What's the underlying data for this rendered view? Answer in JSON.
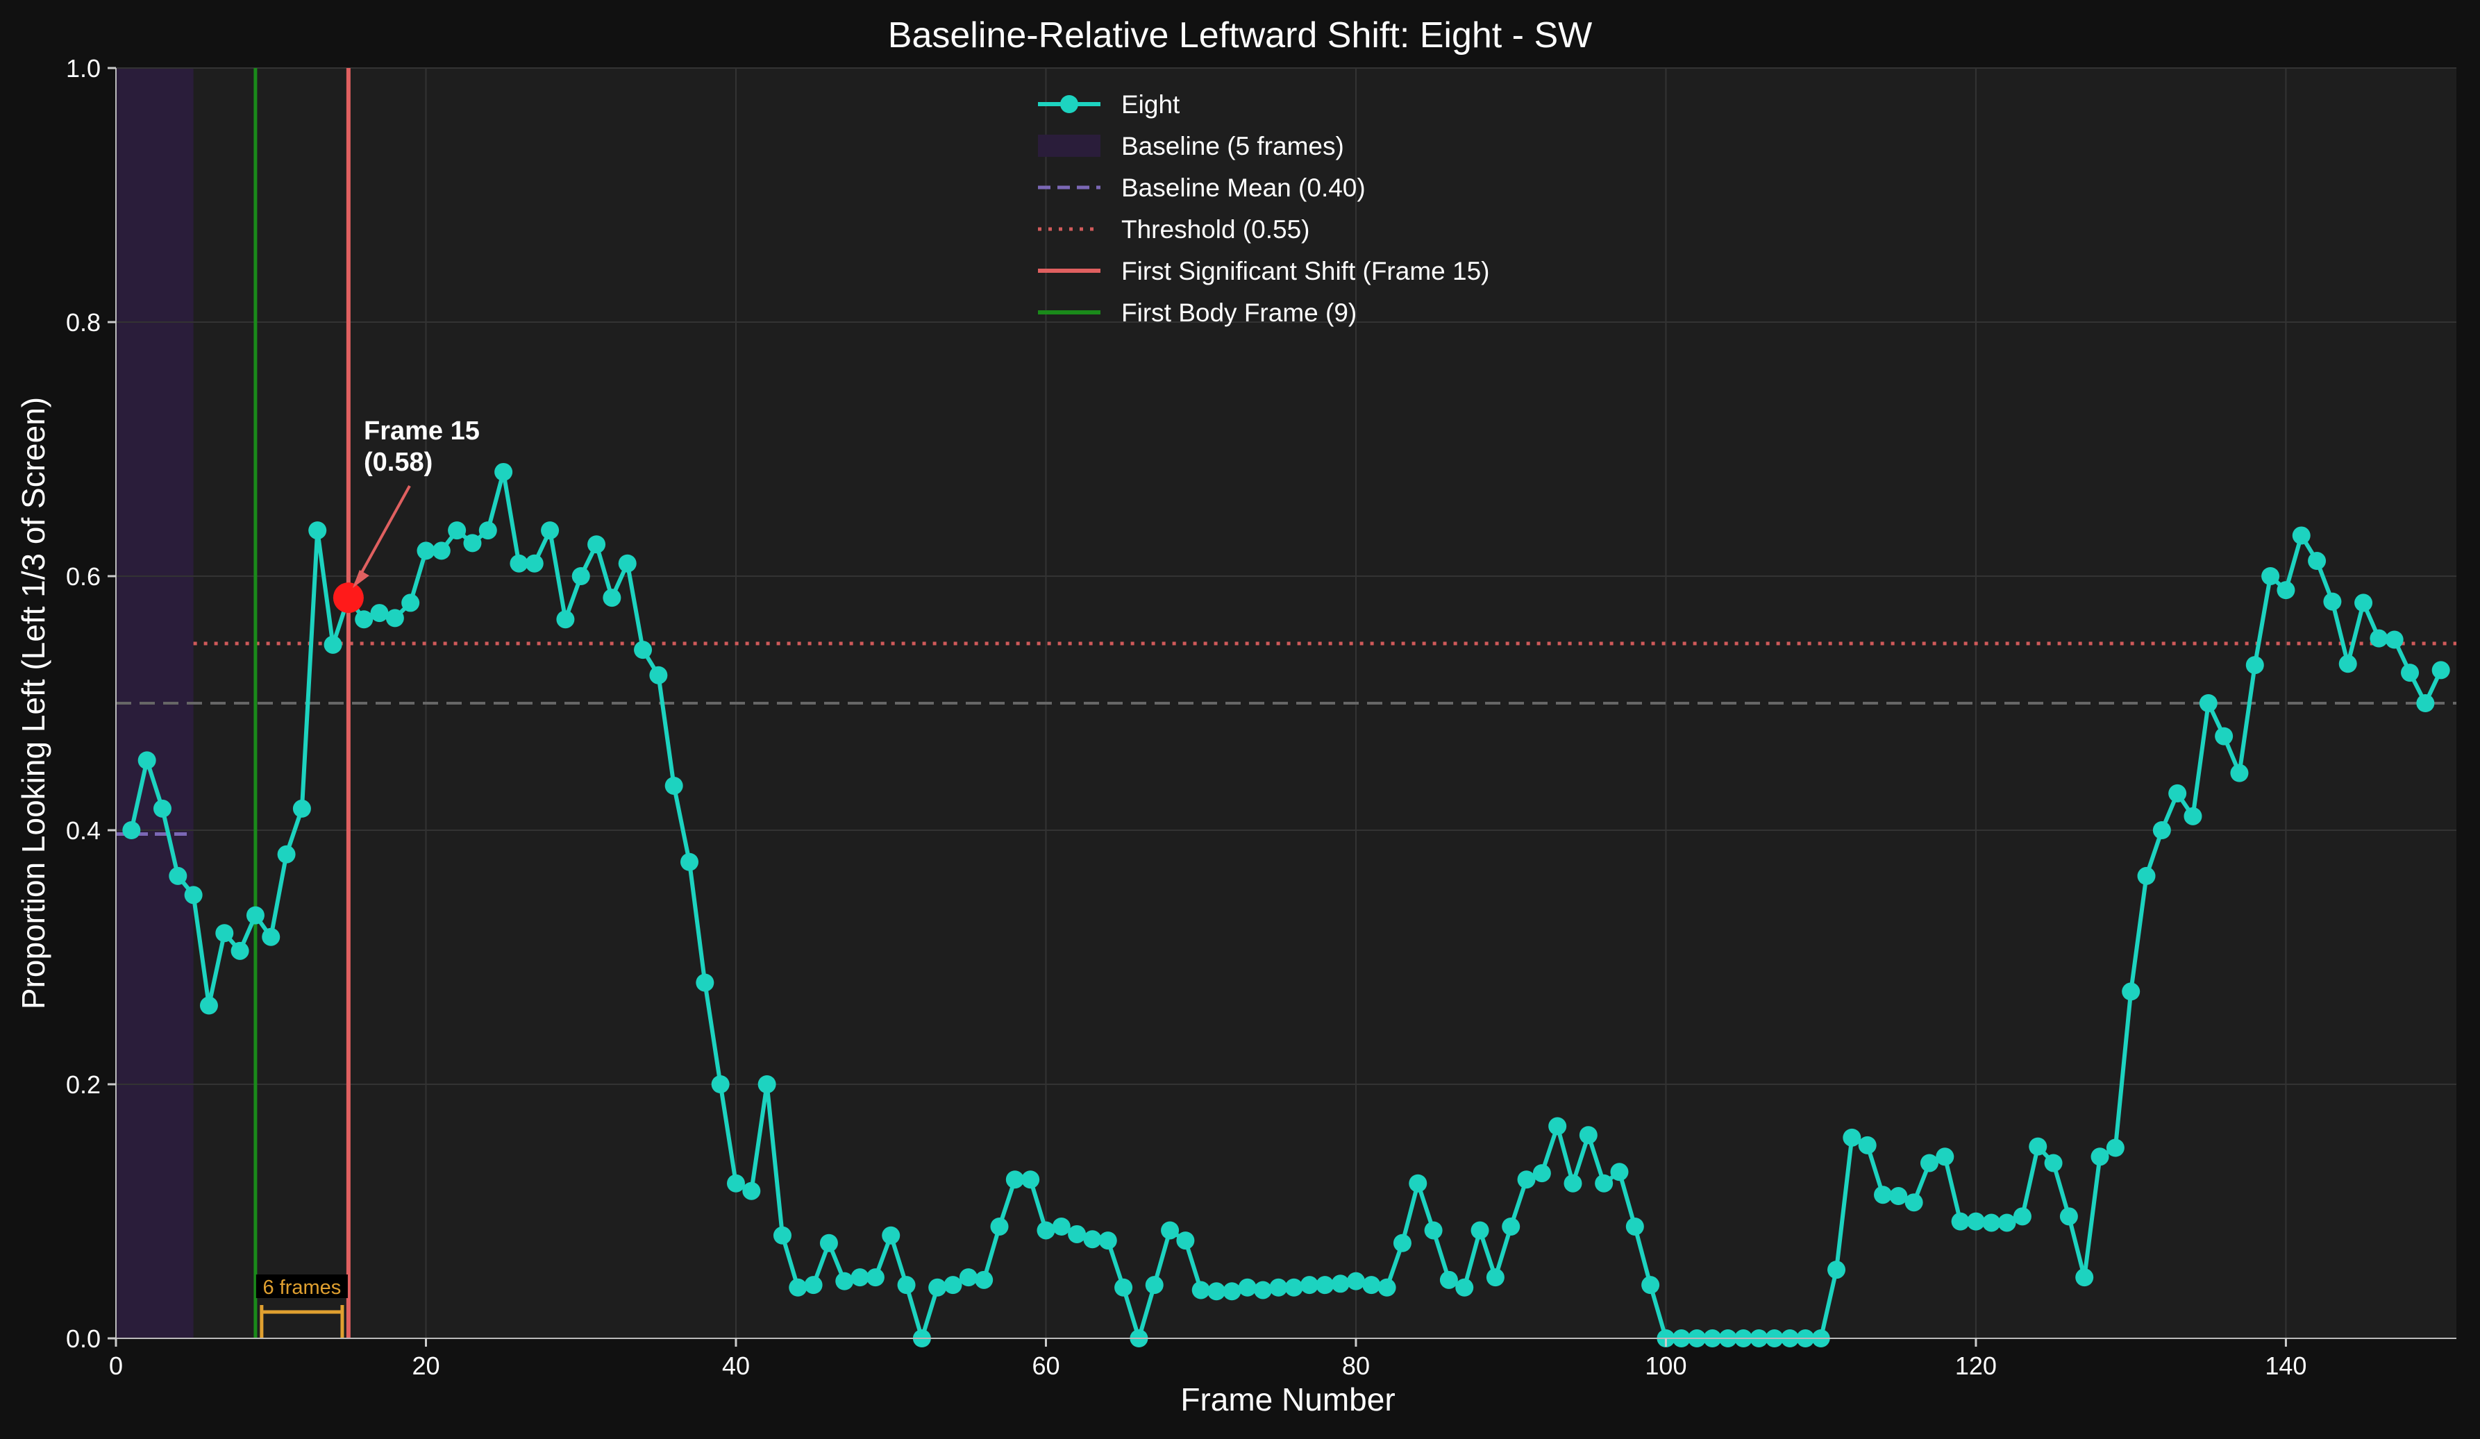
{
  "chart_data": {
    "type": "line",
    "title": "Baseline-Relative Leftward Shift: Eight - SW",
    "xlabel": "Frame Number",
    "ylabel": "Proportion Looking Left (Left 1/3 of Screen)",
    "xlim": [
      0,
      151
    ],
    "ylim": [
      0.0,
      1.0
    ],
    "xticks": [
      "0",
      "20",
      "40",
      "60",
      "80",
      "100",
      "120",
      "140"
    ],
    "yticks": [
      "0.0",
      "0.2",
      "0.4",
      "0.6",
      "0.8",
      "1.0"
    ],
    "grid": true,
    "legend_position": "top-center",
    "series": [
      {
        "name": "Eight",
        "color": "#1dd3c0",
        "x": [
          1,
          2,
          3,
          4,
          5,
          6,
          7,
          8,
          9,
          10,
          11,
          12,
          13,
          14,
          15,
          16,
          17,
          18,
          19,
          20,
          21,
          22,
          23,
          24,
          25,
          26,
          27,
          28,
          29,
          30,
          31,
          32,
          33,
          34,
          35,
          36,
          37,
          38,
          39,
          40,
          41,
          42,
          43,
          44,
          45,
          46,
          47,
          48,
          49,
          50,
          51,
          52,
          53,
          54,
          55,
          56,
          57,
          58,
          59,
          60,
          61,
          62,
          63,
          64,
          65,
          66,
          67,
          68,
          69,
          70,
          71,
          72,
          73,
          74,
          75,
          76,
          77,
          78,
          79,
          80,
          81,
          82,
          83,
          84,
          85,
          86,
          87,
          88,
          89,
          90,
          91,
          92,
          93,
          94,
          95,
          96,
          97,
          98,
          99,
          100,
          101,
          102,
          103,
          104,
          105,
          106,
          107,
          108,
          109,
          110,
          111,
          112,
          113,
          114,
          115,
          116,
          117,
          118,
          119,
          120,
          121,
          122,
          123,
          124,
          125,
          126,
          127,
          128,
          129,
          130,
          131,
          132,
          133,
          134,
          135,
          136,
          137,
          138,
          139,
          140,
          141,
          142,
          143,
          144,
          145,
          146,
          147,
          148,
          149,
          150
        ],
        "y": [
          0.4,
          0.455,
          0.417,
          0.364,
          0.349,
          0.262,
          0.319,
          0.305,
          0.333,
          0.316,
          0.381,
          0.417,
          0.636,
          0.546,
          0.583,
          0.566,
          0.571,
          0.567,
          0.579,
          0.62,
          0.62,
          0.636,
          0.626,
          0.636,
          0.682,
          0.61,
          0.61,
          0.636,
          0.566,
          0.6,
          0.625,
          0.583,
          0.61,
          0.542,
          0.522,
          0.435,
          0.375,
          0.28,
          0.2,
          0.122,
          0.116,
          0.2,
          0.081,
          0.04,
          0.042,
          0.075,
          0.045,
          0.048,
          0.048,
          0.081,
          0.042,
          0.0,
          0.04,
          0.042,
          0.048,
          0.046,
          0.088,
          0.125,
          0.125,
          0.085,
          0.088,
          0.082,
          0.078,
          0.077,
          0.04,
          0.0,
          0.042,
          0.085,
          0.077,
          0.038,
          0.037,
          0.037,
          0.04,
          0.038,
          0.04,
          0.04,
          0.042,
          0.042,
          0.043,
          0.045,
          0.042,
          0.04,
          0.075,
          0.122,
          0.085,
          0.046,
          0.04,
          0.085,
          0.048,
          0.088,
          0.125,
          0.13,
          0.167,
          0.122,
          0.16,
          0.122,
          0.131,
          0.088,
          0.042,
          0.0,
          0.0,
          0.0,
          0.0,
          0.0,
          0.0,
          0.0,
          0.0,
          0.0,
          0.0,
          0.0,
          0.054,
          0.158,
          0.152,
          0.113,
          0.112,
          0.107,
          0.138,
          0.143,
          0.092,
          0.092,
          0.091,
          0.091,
          0.096,
          0.151,
          0.138,
          0.096,
          0.048,
          0.143,
          0.15,
          0.273,
          0.364,
          0.4,
          0.429,
          0.411,
          0.5,
          0.474,
          0.445,
          0.53,
          0.6,
          0.589,
          0.632,
          0.612,
          0.58,
          0.531,
          0.579,
          0.551,
          0.55,
          0.524,
          0.5,
          0.526
        ]
      }
    ],
    "baseline": {
      "label": "Baseline (5 frames)",
      "x_range": [
        0,
        5
      ],
      "color": "#2a1d3a"
    },
    "baseline_mean": {
      "label": "Baseline Mean (0.40)",
      "value": 0.397,
      "x_range": [
        0,
        5
      ],
      "color": "#7b68b5"
    },
    "threshold": {
      "label": "Threshold (0.55)",
      "value": 0.547,
      "x_start": 5,
      "color": "#d05a5a"
    },
    "reference_line": {
      "value": 0.5,
      "color": "#666666"
    },
    "first_shift": {
      "label": "First Significant Shift (Frame 15)",
      "frame": 15,
      "value": 0.583,
      "color": "#e06060"
    },
    "first_body_frame": {
      "label": "First Body Frame (9)",
      "frame": 9,
      "color": "#1a8a1a"
    },
    "annotations": {
      "shift_label_line1": "Frame 15",
      "shift_label_line2": "(0.58)",
      "gap_label": "6 frames",
      "gap_range": [
        9.4,
        14.6
      ],
      "gap_color": "#e0a030"
    }
  }
}
